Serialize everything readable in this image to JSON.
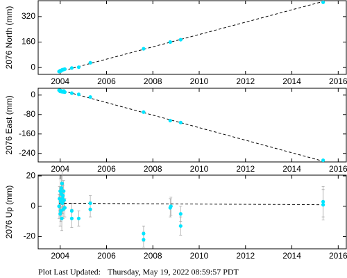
{
  "chart_data": [
    {
      "type": "scatter",
      "y_label": "2076 North (mm)",
      "color": "#00e5ff",
      "trend_color": "#000000",
      "xlim": [
        2003.05,
        2016.35
      ],
      "ylim": [
        -43,
        420
      ],
      "xticks": [
        2004,
        2006,
        2008,
        2010,
        2012,
        2014,
        2016
      ],
      "yticks": [
        0,
        160,
        320
      ],
      "x": [
        2003.95,
        2004.0,
        2004.03,
        2004.06,
        2004.08,
        2004.1,
        2004.13,
        2004.16,
        2004.2,
        2004.5,
        2004.8,
        2005.3,
        2007.6,
        2008.75,
        2009.2,
        2015.35
      ],
      "values": [
        -25,
        -20,
        -22,
        -18,
        -15,
        -14,
        -13,
        -12,
        -10,
        -3,
        2,
        30,
        118,
        160,
        175,
        410
      ],
      "trend": {
        "x": [
          2003.95,
          2015.35
        ],
        "values": [
          -27,
          415
        ]
      }
    },
    {
      "type": "scatter",
      "y_label": "2076 East (mm)",
      "color": "#00e5ff",
      "trend_color": "#000000",
      "xlim": [
        2003.05,
        2016.35
      ],
      "ylim": [
        -275,
        28
      ],
      "xticks": [
        2004,
        2006,
        2008,
        2010,
        2012,
        2014,
        2016
      ],
      "yticks": [
        0,
        -80,
        -160,
        -240
      ],
      "x": [
        2003.95,
        2004.0,
        2004.03,
        2004.06,
        2004.08,
        2004.1,
        2004.13,
        2004.16,
        2004.2,
        2004.5,
        2004.8,
        2005.3,
        2007.6,
        2008.75,
        2009.2,
        2015.35
      ],
      "values": [
        20,
        15,
        18,
        14,
        16,
        15,
        13,
        17,
        12,
        8,
        3,
        -8,
        -70,
        -105,
        -113,
        -268
      ],
      "trend": {
        "x": [
          2003.95,
          2015.35
        ],
        "values": [
          22,
          -272
        ]
      }
    },
    {
      "type": "scatter",
      "y_label": "2076 Up (mm)",
      "color": "#00e5ff",
      "trend_color": "#000000",
      "error_color": "#aaaaaa",
      "xlim": [
        2003.05,
        2016.35
      ],
      "ylim": [
        -28,
        20.5
      ],
      "xticks": [
        2004,
        2006,
        2008,
        2010,
        2012,
        2014,
        2016
      ],
      "yticks": [
        20,
        0,
        -20
      ],
      "x": [
        2003.95,
        2003.97,
        2004.0,
        2004.0,
        2004.02,
        2004.03,
        2004.05,
        2004.05,
        2004.07,
        2004.08,
        2004.1,
        2004.1,
        2004.12,
        2004.13,
        2004.15,
        2004.17,
        2004.2,
        2004.5,
        2004.5,
        2004.8,
        2005.3,
        2005.3,
        2007.6,
        2007.6,
        2008.75,
        2008.78,
        2009.2,
        2009.2,
        2015.35,
        2015.35
      ],
      "values": [
        0,
        5,
        -5,
        10,
        3,
        -3,
        12,
        8,
        -8,
        15,
        2,
        5,
        7,
        -2,
        10,
        4,
        -1,
        -3,
        -8,
        -8,
        -2,
        2,
        -18,
        -22,
        -1,
        0,
        -5,
        -13,
        1,
        3
      ],
      "errors": [
        8,
        8,
        8,
        8,
        7,
        7,
        8,
        7,
        8,
        8,
        7,
        6,
        7,
        6,
        7,
        6,
        6,
        5,
        6,
        5,
        5,
        5,
        5,
        5,
        6,
        6,
        5,
        6,
        10,
        10
      ],
      "trend": {
        "x": [
          2003.95,
          2015.35
        ],
        "values": [
          2,
          1
        ]
      }
    }
  ],
  "footer": {
    "label": "Plot Last Updated:",
    "date": "Thursday, May 19, 2022 08:59:57 PDT"
  }
}
